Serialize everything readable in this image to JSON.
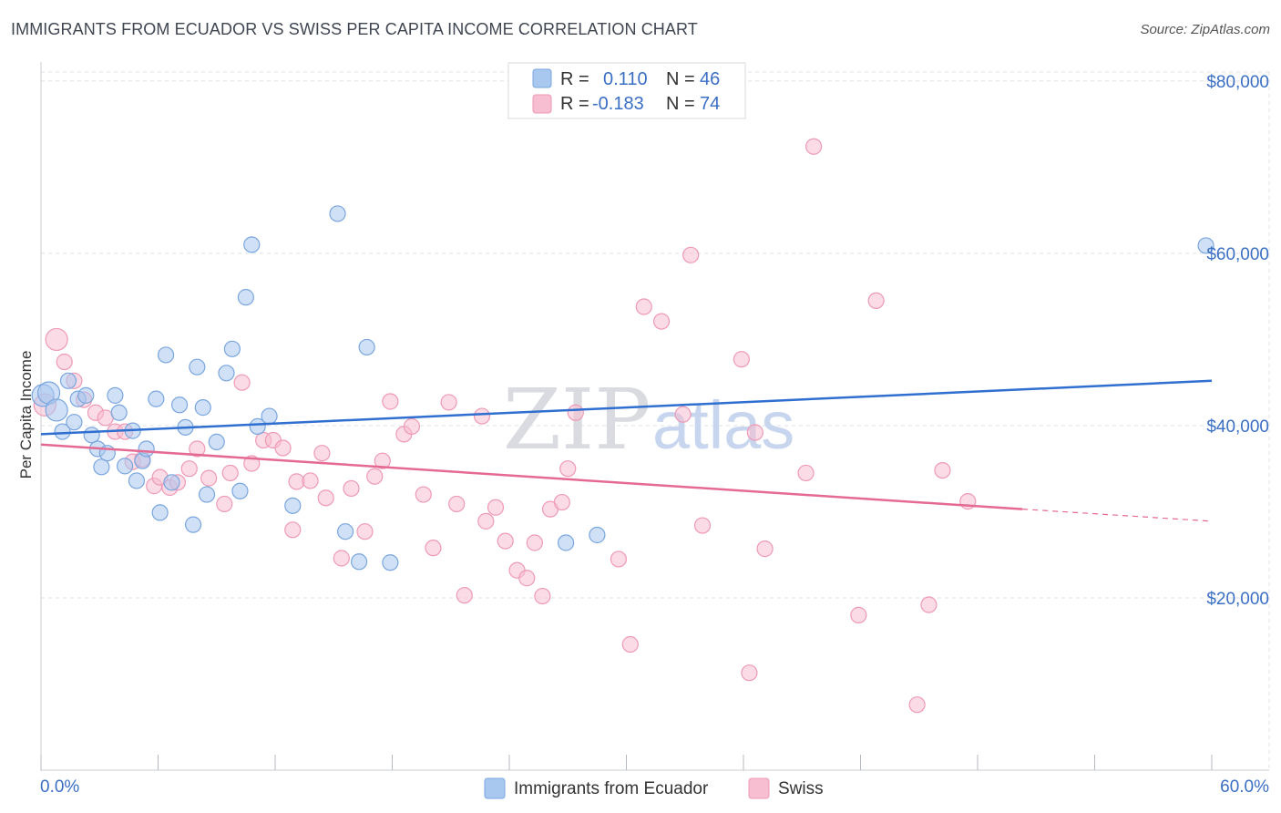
{
  "title": "IMMIGRANTS FROM ECUADOR VS SWISS PER CAPITA INCOME CORRELATION CHART",
  "source": "Source: ZipAtlas.com",
  "watermark": {
    "zip": "ZIP",
    "atlas": "atlas"
  },
  "legend": {
    "rows": [
      {
        "r_label": "R =",
        "r_value": "0.110",
        "n_label": "N =",
        "n_value": "46"
      },
      {
        "r_label": "R =",
        "r_value": "-0.183",
        "n_label": "N =",
        "n_value": "74"
      }
    ]
  },
  "bottom_legend": [
    "Immigrants from Ecuador",
    "Swiss"
  ],
  "colors": {
    "ecuador_fill": "#a9c8f0",
    "ecuador_stroke": "#7aa6de",
    "ecuador_line": "#2f6fcf",
    "swiss_fill": "#f7bdd0",
    "swiss_stroke": "#ee9ab6",
    "swiss_line": "#e56a93",
    "grid": "#dde1e8",
    "tick_label": "#3a6fc4"
  },
  "chart_data": {
    "type": "scatter",
    "title": "IMMIGRANTS FROM ECUADOR VS SWISS PER CAPITA INCOME CORRELATION CHART",
    "ylabel": "Per Capita Income",
    "xlabel": "",
    "xlim": [
      0,
      60
    ],
    "ylim": [
      0,
      82000
    ],
    "x_tick_labels": [
      "0.0%",
      "60.0%"
    ],
    "y_ticks": [
      20000,
      40000,
      60000,
      80000
    ],
    "y_tick_labels": [
      "$20,000",
      "$40,000",
      "$60,000",
      "$80,000"
    ],
    "grid": true,
    "legend_position": "top-center",
    "series": [
      {
        "name": "Immigrants from Ecuador",
        "trend": {
          "x0": 0,
          "y0": 39000,
          "x1": 60,
          "y1": 45200
        },
        "points": [
          [
            0.1,
            43500
          ],
          [
            0.4,
            43800
          ],
          [
            0.8,
            41800
          ],
          [
            1.1,
            39300
          ],
          [
            1.4,
            45200
          ],
          [
            1.7,
            40400
          ],
          [
            1.9,
            43100
          ],
          [
            2.3,
            43500
          ],
          [
            2.6,
            38900
          ],
          [
            2.9,
            37300
          ],
          [
            3.1,
            35200
          ],
          [
            3.4,
            36800
          ],
          [
            3.8,
            43500
          ],
          [
            4.0,
            41500
          ],
          [
            4.3,
            35300
          ],
          [
            4.7,
            39400
          ],
          [
            4.9,
            33600
          ],
          [
            5.2,
            35900
          ],
          [
            5.4,
            37300
          ],
          [
            5.9,
            43100
          ],
          [
            6.1,
            29900
          ],
          [
            6.4,
            48200
          ],
          [
            6.7,
            33400
          ],
          [
            7.1,
            42400
          ],
          [
            7.4,
            39800
          ],
          [
            7.8,
            28500
          ],
          [
            8.0,
            46800
          ],
          [
            8.3,
            42100
          ],
          [
            8.5,
            32000
          ],
          [
            9.0,
            38100
          ],
          [
            9.5,
            46100
          ],
          [
            9.8,
            48900
          ],
          [
            10.2,
            32400
          ],
          [
            10.5,
            54900
          ],
          [
            10.8,
            61000
          ],
          [
            11.1,
            39900
          ],
          [
            11.7,
            41100
          ],
          [
            12.9,
            30700
          ],
          [
            15.2,
            64600
          ],
          [
            15.6,
            27700
          ],
          [
            16.3,
            24200
          ],
          [
            16.7,
            49100
          ],
          [
            17.9,
            24100
          ],
          [
            26.9,
            26400
          ],
          [
            28.5,
            27300
          ],
          [
            59.7,
            60900
          ]
        ]
      },
      {
        "name": "Swiss",
        "trend": {
          "x0": 0,
          "y0": 37800,
          "x1": 50.3,
          "y1": 30300,
          "dash_x1": 60,
          "dash_y1": 28900
        },
        "points": [
          [
            0.2,
            42400
          ],
          [
            0.8,
            50000
          ],
          [
            1.2,
            47400
          ],
          [
            1.7,
            45200
          ],
          [
            2.2,
            43000
          ],
          [
            2.8,
            41500
          ],
          [
            3.3,
            40900
          ],
          [
            3.8,
            39300
          ],
          [
            4.3,
            39300
          ],
          [
            4.7,
            35800
          ],
          [
            5.2,
            36100
          ],
          [
            5.8,
            33000
          ],
          [
            6.1,
            34000
          ],
          [
            6.6,
            32800
          ],
          [
            7.0,
            33400
          ],
          [
            7.6,
            35000
          ],
          [
            8.0,
            37300
          ],
          [
            8.6,
            33900
          ],
          [
            9.4,
            30900
          ],
          [
            9.7,
            34500
          ],
          [
            10.3,
            45000
          ],
          [
            10.8,
            35600
          ],
          [
            11.4,
            38300
          ],
          [
            11.9,
            38300
          ],
          [
            12.4,
            37400
          ],
          [
            12.9,
            27900
          ],
          [
            13.1,
            33500
          ],
          [
            13.8,
            33600
          ],
          [
            14.4,
            36800
          ],
          [
            14.6,
            31600
          ],
          [
            15.4,
            24600
          ],
          [
            15.9,
            32700
          ],
          [
            16.6,
            27700
          ],
          [
            17.1,
            34100
          ],
          [
            17.5,
            35900
          ],
          [
            17.9,
            42800
          ],
          [
            18.6,
            39000
          ],
          [
            19.0,
            39900
          ],
          [
            19.6,
            32000
          ],
          [
            20.1,
            25800
          ],
          [
            20.9,
            42700
          ],
          [
            21.3,
            30900
          ],
          [
            21.7,
            20300
          ],
          [
            22.6,
            41100
          ],
          [
            22.8,
            28900
          ],
          [
            23.3,
            30500
          ],
          [
            23.8,
            26600
          ],
          [
            24.4,
            23200
          ],
          [
            24.9,
            22300
          ],
          [
            25.3,
            26400
          ],
          [
            25.7,
            20200
          ],
          [
            26.1,
            30300
          ],
          [
            26.7,
            31100
          ],
          [
            27.0,
            35000
          ],
          [
            27.4,
            41500
          ],
          [
            29.6,
            24500
          ],
          [
            30.2,
            14600
          ],
          [
            30.9,
            53800
          ],
          [
            31.8,
            52100
          ],
          [
            32.9,
            41300
          ],
          [
            33.3,
            59800
          ],
          [
            33.9,
            28400
          ],
          [
            35.9,
            47700
          ],
          [
            36.3,
            11300
          ],
          [
            36.6,
            39200
          ],
          [
            37.1,
            25700
          ],
          [
            39.2,
            34500
          ],
          [
            39.6,
            72400
          ],
          [
            41.9,
            18000
          ],
          [
            42.8,
            54500
          ],
          [
            44.9,
            7600
          ],
          [
            45.5,
            19200
          ],
          [
            46.2,
            34800
          ],
          [
            47.5,
            31200
          ]
        ]
      }
    ]
  }
}
